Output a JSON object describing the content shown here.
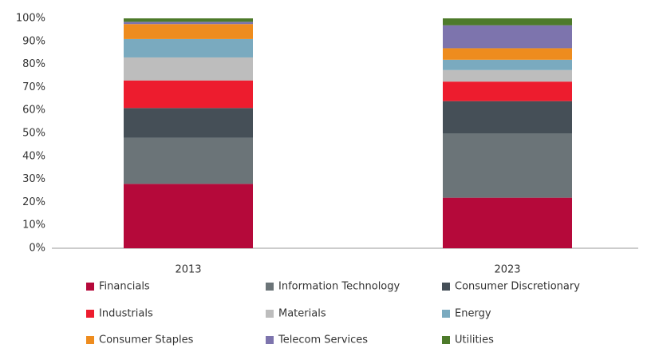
{
  "chart_data": {
    "type": "stacked_bar",
    "categories": [
      "2013",
      "2023"
    ],
    "series": [
      {
        "name": "Financials",
        "color": "#b5093a",
        "values": [
          28,
          22
        ]
      },
      {
        "name": "Information Technology",
        "color": "#6b7478",
        "values": [
          20,
          28
        ]
      },
      {
        "name": "Consumer Discretionary",
        "color": "#454f57",
        "values": [
          13,
          14
        ]
      },
      {
        "name": "Industrials",
        "color": "#ed1c2e",
        "values": [
          12,
          8.5
        ]
      },
      {
        "name": "Materials",
        "color": "#bdbdbd",
        "values": [
          10,
          5
        ]
      },
      {
        "name": "Energy",
        "color": "#7aaabf",
        "values": [
          8,
          4.5
        ]
      },
      {
        "name": "Consumer Staples",
        "color": "#ee8c1e",
        "values": [
          6.5,
          5
        ]
      },
      {
        "name": "Telecom Services",
        "color": "#7d74ad",
        "values": [
          1,
          10
        ]
      },
      {
        "name": "Utilities",
        "color": "#4d7a2a",
        "values": [
          1.5,
          3
        ]
      }
    ],
    "ylim": [
      0,
      100
    ],
    "yticks": [
      {
        "value": 0,
        "label": "0%"
      },
      {
        "value": 10,
        "label": "10%"
      },
      {
        "value": 20,
        "label": "20%"
      },
      {
        "value": 30,
        "label": "30%"
      },
      {
        "value": 40,
        "label": "40%"
      },
      {
        "value": 50,
        "label": "50%"
      },
      {
        "value": 60,
        "label": "60%"
      },
      {
        "value": 70,
        "label": "70%"
      },
      {
        "value": 80,
        "label": "80%"
      },
      {
        "value": 90,
        "label": "90%"
      },
      {
        "value": 100,
        "label": "100%"
      }
    ],
    "grid": false
  }
}
